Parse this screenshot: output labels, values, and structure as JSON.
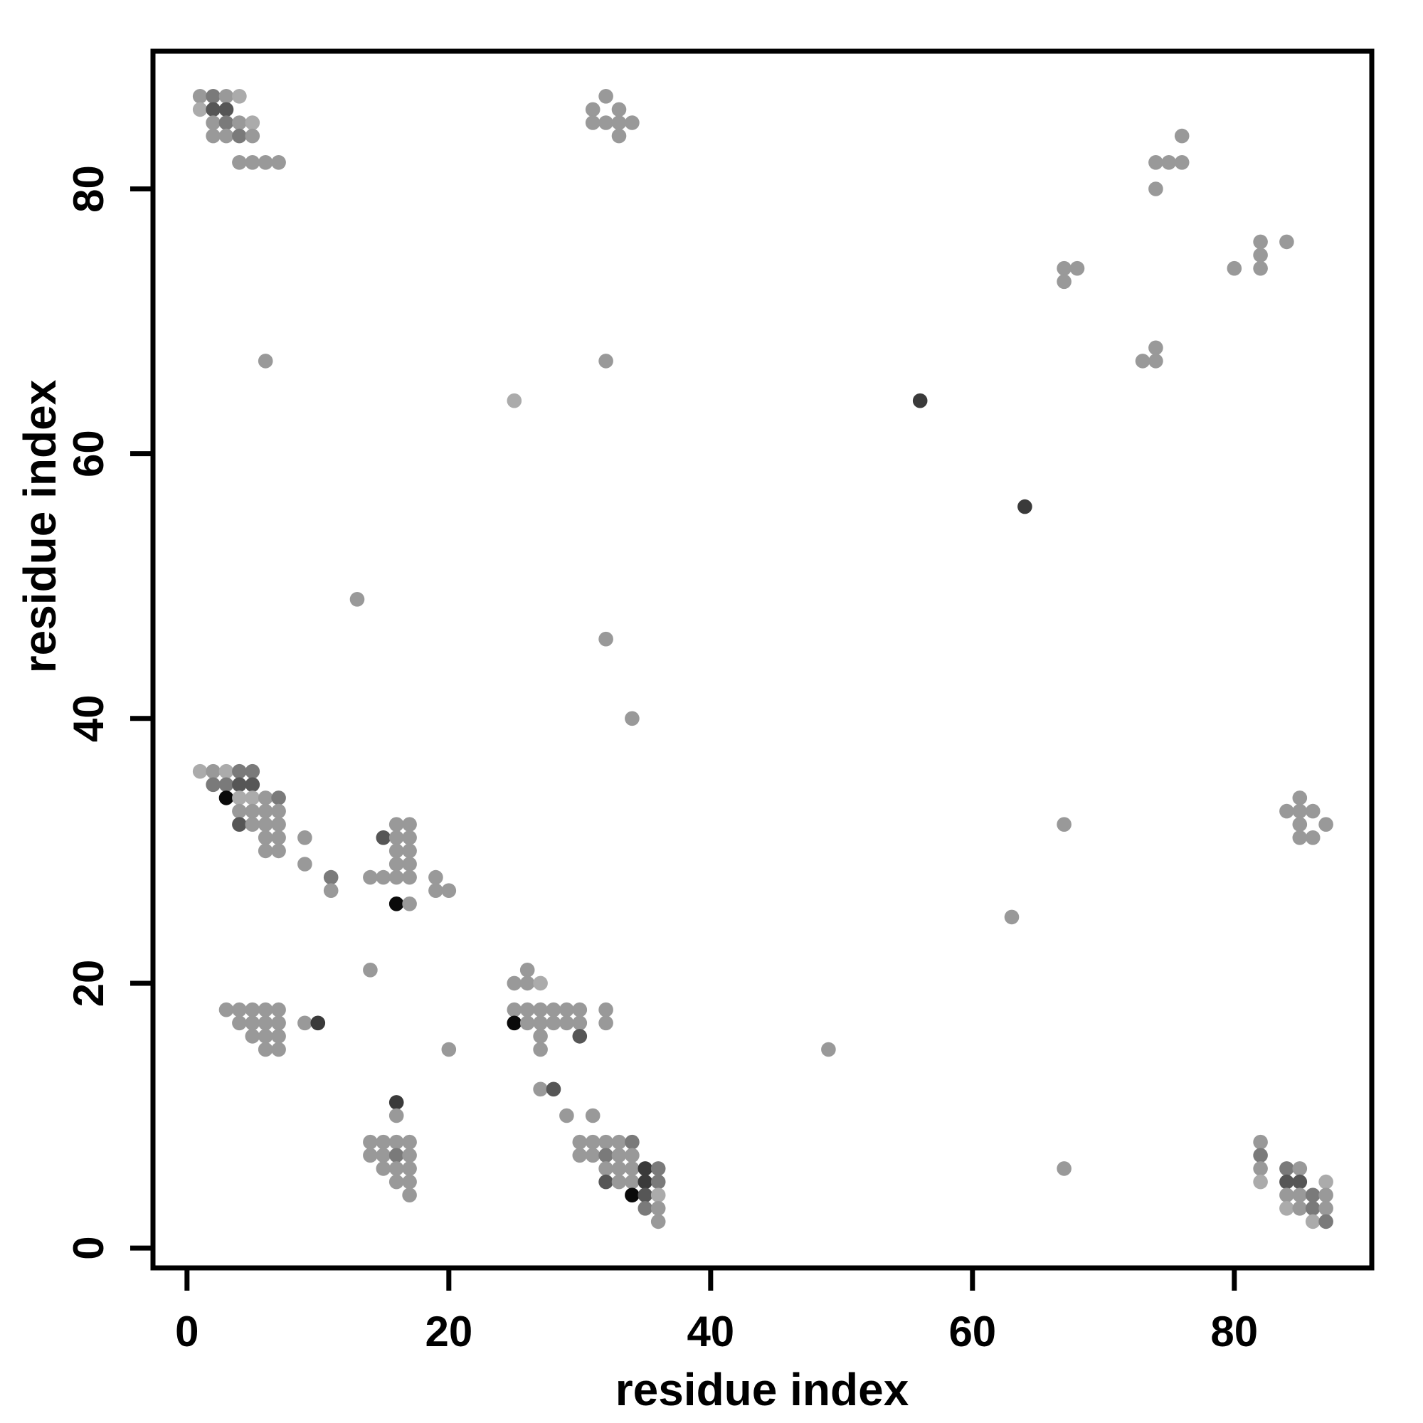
{
  "chart_data": {
    "type": "scatter",
    "title": "",
    "xlabel": "residue index",
    "ylabel": "residue index",
    "x_ticks": [
      0,
      20,
      40,
      60,
      80
    ],
    "y_ticks": [
      0,
      20,
      40,
      60,
      80
    ],
    "xlim": [
      -2.6,
      90.5
    ],
    "ylim": [
      -1.5,
      90.4
    ],
    "grid": false,
    "legend": "none",
    "marker": "filled-circle",
    "marker_diameter_units": 1.1,
    "palette": {
      "L": "#ababab",
      "M": "#999999",
      "D": "#7a7a7a",
      "K": "#565656",
      "VD": "#3a3a3a",
      "B": "#0a0a0a"
    },
    "points": [
      [
        1,
        87,
        "M"
      ],
      [
        2,
        87,
        "D"
      ],
      [
        3,
        87,
        "M"
      ],
      [
        4,
        87,
        "L"
      ],
      [
        1,
        86,
        "L"
      ],
      [
        2,
        86,
        "K"
      ],
      [
        3,
        86,
        "K"
      ],
      [
        2,
        85,
        "M"
      ],
      [
        3,
        85,
        "D"
      ],
      [
        4,
        85,
        "M"
      ],
      [
        5,
        85,
        "L"
      ],
      [
        2,
        84,
        "M"
      ],
      [
        3,
        84,
        "M"
      ],
      [
        4,
        84,
        "D"
      ],
      [
        5,
        84,
        "M"
      ],
      [
        4,
        82,
        "M"
      ],
      [
        5,
        82,
        "M"
      ],
      [
        6,
        82,
        "M"
      ],
      [
        7,
        82,
        "M"
      ],
      [
        32,
        87,
        "M"
      ],
      [
        31,
        86,
        "M"
      ],
      [
        33,
        86,
        "M"
      ],
      [
        31,
        85,
        "M"
      ],
      [
        32,
        85,
        "M"
      ],
      [
        33,
        85,
        "M"
      ],
      [
        34,
        85,
        "M"
      ],
      [
        33,
        84,
        "M"
      ],
      [
        76,
        84,
        "M"
      ],
      [
        74,
        82,
        "M"
      ],
      [
        75,
        82,
        "M"
      ],
      [
        76,
        82,
        "M"
      ],
      [
        74,
        80,
        "M"
      ],
      [
        82,
        76,
        "M"
      ],
      [
        84,
        76,
        "M"
      ],
      [
        82,
        75,
        "M"
      ],
      [
        80,
        74,
        "M"
      ],
      [
        82,
        74,
        "M"
      ],
      [
        67,
        74,
        "M"
      ],
      [
        68,
        74,
        "M"
      ],
      [
        67,
        73,
        "M"
      ],
      [
        74,
        68,
        "M"
      ],
      [
        73,
        67,
        "M"
      ],
      [
        74,
        67,
        "M"
      ],
      [
        6,
        67,
        "M"
      ],
      [
        32,
        67,
        "M"
      ],
      [
        25,
        64,
        "L"
      ],
      [
        56,
        64,
        "VD"
      ],
      [
        64,
        56,
        "VD"
      ],
      [
        13,
        49,
        "M"
      ],
      [
        32,
        46,
        "M"
      ],
      [
        34,
        40,
        "M"
      ],
      [
        1,
        36,
        "L"
      ],
      [
        2,
        36,
        "M"
      ],
      [
        3,
        36,
        "L"
      ],
      [
        4,
        36,
        "D"
      ],
      [
        5,
        36,
        "D"
      ],
      [
        2,
        35,
        "D"
      ],
      [
        3,
        35,
        "D"
      ],
      [
        4,
        35,
        "K"
      ],
      [
        5,
        35,
        "K"
      ],
      [
        3,
        34,
        "B"
      ],
      [
        4,
        34,
        "L"
      ],
      [
        5,
        34,
        "L"
      ],
      [
        6,
        34,
        "M"
      ],
      [
        7,
        34,
        "D"
      ],
      [
        4,
        33,
        "M"
      ],
      [
        5,
        33,
        "M"
      ],
      [
        6,
        33,
        "M"
      ],
      [
        7,
        33,
        "M"
      ],
      [
        4,
        32,
        "K"
      ],
      [
        5,
        32,
        "M"
      ],
      [
        6,
        32,
        "M"
      ],
      [
        7,
        32,
        "M"
      ],
      [
        6,
        31,
        "M"
      ],
      [
        7,
        31,
        "M"
      ],
      [
        9,
        31,
        "M"
      ],
      [
        6,
        30,
        "M"
      ],
      [
        7,
        30,
        "M"
      ],
      [
        9,
        29,
        "M"
      ],
      [
        11,
        28,
        "D"
      ],
      [
        11,
        27,
        "M"
      ],
      [
        16,
        32,
        "M"
      ],
      [
        17,
        32,
        "M"
      ],
      [
        15,
        31,
        "K"
      ],
      [
        16,
        31,
        "M"
      ],
      [
        17,
        31,
        "M"
      ],
      [
        16,
        30,
        "M"
      ],
      [
        17,
        30,
        "M"
      ],
      [
        16,
        29,
        "M"
      ],
      [
        17,
        29,
        "M"
      ],
      [
        14,
        28,
        "M"
      ],
      [
        15,
        28,
        "M"
      ],
      [
        16,
        28,
        "M"
      ],
      [
        17,
        28,
        "M"
      ],
      [
        19,
        28,
        "M"
      ],
      [
        19,
        27,
        "M"
      ],
      [
        20,
        27,
        "M"
      ],
      [
        16,
        26,
        "B"
      ],
      [
        17,
        26,
        "M"
      ],
      [
        26,
        21,
        "M"
      ],
      [
        25,
        20,
        "M"
      ],
      [
        26,
        20,
        "M"
      ],
      [
        27,
        20,
        "L"
      ],
      [
        25,
        18,
        "M"
      ],
      [
        26,
        18,
        "M"
      ],
      [
        27,
        18,
        "M"
      ],
      [
        28,
        18,
        "M"
      ],
      [
        29,
        18,
        "M"
      ],
      [
        30,
        18,
        "M"
      ],
      [
        32,
        18,
        "M"
      ],
      [
        25,
        17,
        "B"
      ],
      [
        26,
        17,
        "M"
      ],
      [
        27,
        17,
        "M"
      ],
      [
        28,
        17,
        "M"
      ],
      [
        29,
        17,
        "M"
      ],
      [
        30,
        17,
        "M"
      ],
      [
        32,
        17,
        "M"
      ],
      [
        27,
        16,
        "M"
      ],
      [
        30,
        16,
        "K"
      ],
      [
        27,
        15,
        "M"
      ],
      [
        20,
        15,
        "M"
      ],
      [
        49,
        15,
        "M"
      ],
      [
        27,
        12,
        "M"
      ],
      [
        28,
        12,
        "K"
      ],
      [
        29,
        10,
        "M"
      ],
      [
        31,
        10,
        "M"
      ],
      [
        3,
        18,
        "M"
      ],
      [
        4,
        18,
        "M"
      ],
      [
        5,
        18,
        "M"
      ],
      [
        6,
        18,
        "M"
      ],
      [
        7,
        18,
        "M"
      ],
      [
        4,
        17,
        "M"
      ],
      [
        5,
        17,
        "M"
      ],
      [
        6,
        17,
        "M"
      ],
      [
        7,
        17,
        "M"
      ],
      [
        9,
        17,
        "M"
      ],
      [
        10,
        17,
        "VD"
      ],
      [
        5,
        16,
        "M"
      ],
      [
        6,
        16,
        "M"
      ],
      [
        7,
        16,
        "M"
      ],
      [
        6,
        15,
        "M"
      ],
      [
        7,
        15,
        "M"
      ],
      [
        14,
        21,
        "M"
      ],
      [
        16,
        11,
        "VD"
      ],
      [
        16,
        10,
        "M"
      ],
      [
        14,
        8,
        "M"
      ],
      [
        15,
        8,
        "M"
      ],
      [
        16,
        8,
        "M"
      ],
      [
        17,
        8,
        "M"
      ],
      [
        14,
        7,
        "M"
      ],
      [
        15,
        7,
        "M"
      ],
      [
        16,
        7,
        "D"
      ],
      [
        17,
        7,
        "M"
      ],
      [
        15,
        6,
        "M"
      ],
      [
        16,
        6,
        "M"
      ],
      [
        17,
        6,
        "M"
      ],
      [
        16,
        5,
        "M"
      ],
      [
        17,
        5,
        "M"
      ],
      [
        17,
        4,
        "M"
      ],
      [
        30,
        8,
        "M"
      ],
      [
        31,
        8,
        "M"
      ],
      [
        32,
        8,
        "M"
      ],
      [
        33,
        8,
        "M"
      ],
      [
        34,
        8,
        "D"
      ],
      [
        30,
        7,
        "M"
      ],
      [
        31,
        7,
        "M"
      ],
      [
        32,
        7,
        "D"
      ],
      [
        33,
        7,
        "M"
      ],
      [
        34,
        7,
        "M"
      ],
      [
        32,
        6,
        "M"
      ],
      [
        33,
        6,
        "M"
      ],
      [
        34,
        6,
        "M"
      ],
      [
        35,
        6,
        "VD"
      ],
      [
        36,
        6,
        "D"
      ],
      [
        32,
        5,
        "K"
      ],
      [
        33,
        5,
        "M"
      ],
      [
        34,
        5,
        "M"
      ],
      [
        35,
        5,
        "VD"
      ],
      [
        36,
        5,
        "D"
      ],
      [
        34,
        4,
        "B"
      ],
      [
        35,
        4,
        "K"
      ],
      [
        36,
        4,
        "L"
      ],
      [
        35,
        3,
        "D"
      ],
      [
        36,
        3,
        "M"
      ],
      [
        36,
        2,
        "M"
      ],
      [
        63,
        25,
        "M"
      ],
      [
        67,
        32,
        "M"
      ],
      [
        67,
        6,
        "M"
      ],
      [
        87,
        32,
        "M"
      ],
      [
        86,
        31,
        "M"
      ],
      [
        86,
        33,
        "M"
      ],
      [
        85,
        31,
        "M"
      ],
      [
        85,
        32,
        "M"
      ],
      [
        85,
        33,
        "M"
      ],
      [
        85,
        34,
        "M"
      ],
      [
        84,
        33,
        "M"
      ],
      [
        82,
        8,
        "M"
      ],
      [
        82,
        7,
        "D"
      ],
      [
        82,
        6,
        "M"
      ],
      [
        82,
        5,
        "L"
      ],
      [
        84,
        6,
        "D"
      ],
      [
        85,
        6,
        "M"
      ],
      [
        84,
        5,
        "K"
      ],
      [
        85,
        5,
        "K"
      ],
      [
        87,
        5,
        "L"
      ],
      [
        84,
        4,
        "M"
      ],
      [
        85,
        4,
        "M"
      ],
      [
        86,
        4,
        "D"
      ],
      [
        87,
        4,
        "M"
      ],
      [
        84,
        3,
        "L"
      ],
      [
        85,
        3,
        "M"
      ],
      [
        86,
        3,
        "D"
      ],
      [
        87,
        3,
        "M"
      ],
      [
        86,
        2,
        "L"
      ],
      [
        87,
        2,
        "D"
      ]
    ]
  }
}
